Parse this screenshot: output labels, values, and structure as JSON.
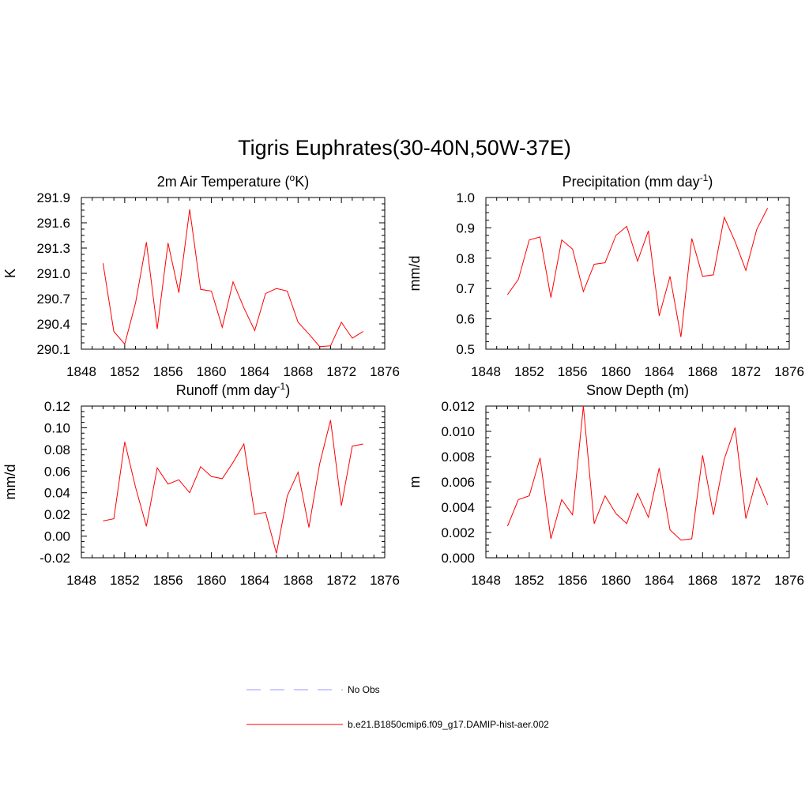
{
  "title": "Tigris Euphrates(30-40N,50W-37E)",
  "legend": [
    {
      "label": "No Obs",
      "color": "#9999ff",
      "dash": true
    },
    {
      "label": "b.e21.B1850cmip6.f09_g17.DAMIP-hist-aer.002",
      "color": "#ff0000",
      "dash": false
    }
  ],
  "chart_data": [
    {
      "type": "line",
      "title": "2m Air Temperature (°K)",
      "title_parts": {
        "pre": "2m Air Temperature (",
        "sup": "o",
        "post": "K)"
      },
      "ylabel": "K",
      "xlim": [
        1848,
        1876
      ],
      "ylim": [
        290.1,
        291.9
      ],
      "xticks": [
        1848,
        1852,
        1856,
        1860,
        1864,
        1868,
        1872,
        1876
      ],
      "yticks": [
        290.1,
        290.4,
        290.7,
        291.0,
        291.3,
        291.6,
        291.9
      ],
      "ytick_labels": [
        "290.1",
        "290.4",
        "290.7",
        "291.0",
        "291.3",
        "291.6",
        "291.9"
      ],
      "x": [
        1850,
        1851,
        1852,
        1853,
        1854,
        1855,
        1856,
        1857,
        1858,
        1859,
        1860,
        1861,
        1862,
        1863,
        1864,
        1865,
        1866,
        1867,
        1868,
        1869,
        1870,
        1871,
        1872,
        1873,
        1874
      ],
      "series": [
        {
          "name": "b.e21.B1850cmip6.f09_g17.DAMIP-hist-aer.002",
          "values": [
            291.12,
            290.31,
            290.16,
            290.65,
            291.37,
            290.34,
            291.36,
            290.77,
            291.76,
            290.81,
            290.79,
            290.36,
            290.9,
            290.59,
            290.32,
            290.76,
            290.82,
            290.79,
            290.42,
            290.28,
            290.13,
            290.14,
            290.42,
            290.23,
            290.31
          ]
        }
      ]
    },
    {
      "type": "line",
      "title": "Precipitation (mm day-1)",
      "title_parts": {
        "pre": "Precipitation (mm day",
        "sup": "-1",
        "post": ")"
      },
      "ylabel": "mm/d",
      "xlim": [
        1848,
        1876
      ],
      "ylim": [
        0.5,
        1.0
      ],
      "xticks": [
        1848,
        1852,
        1856,
        1860,
        1864,
        1868,
        1872,
        1876
      ],
      "yticks": [
        0.5,
        0.6,
        0.7,
        0.8,
        0.9,
        1.0
      ],
      "ytick_labels": [
        "0.5",
        "0.6",
        "0.7",
        "0.8",
        "0.9",
        "1.0"
      ],
      "x": [
        1850,
        1851,
        1852,
        1853,
        1854,
        1855,
        1856,
        1857,
        1858,
        1859,
        1860,
        1861,
        1862,
        1863,
        1864,
        1865,
        1866,
        1867,
        1868,
        1869,
        1870,
        1871,
        1872,
        1873,
        1874
      ],
      "series": [
        {
          "name": "b.e21.B1850cmip6.f09_g17.DAMIP-hist-aer.002",
          "values": [
            0.68,
            0.73,
            0.86,
            0.87,
            0.67,
            0.86,
            0.83,
            0.69,
            0.78,
            0.785,
            0.875,
            0.905,
            0.79,
            0.89,
            0.61,
            0.74,
            0.54,
            0.865,
            0.74,
            0.745,
            0.935,
            0.855,
            0.76,
            0.895,
            0.965
          ]
        }
      ]
    },
    {
      "type": "line",
      "title": "Runoff (mm day-1)",
      "title_parts": {
        "pre": "Runoff (mm day",
        "sup": "-1",
        "post": ")"
      },
      "ylabel": "mm/d",
      "xlim": [
        1848,
        1876
      ],
      "ylim": [
        -0.02,
        0.12
      ],
      "xticks": [
        1848,
        1852,
        1856,
        1860,
        1864,
        1868,
        1872,
        1876
      ],
      "yticks": [
        -0.02,
        0.0,
        0.02,
        0.04,
        0.06,
        0.08,
        0.1,
        0.12
      ],
      "ytick_labels": [
        "-0.02",
        "0.00",
        "0.02",
        "0.04",
        "0.06",
        "0.08",
        "0.10",
        "0.12"
      ],
      "x": [
        1850,
        1851,
        1852,
        1853,
        1854,
        1855,
        1856,
        1857,
        1858,
        1859,
        1860,
        1861,
        1862,
        1863,
        1864,
        1865,
        1866,
        1867,
        1868,
        1869,
        1870,
        1871,
        1872,
        1873,
        1874
      ],
      "series": [
        {
          "name": "b.e21.B1850cmip6.f09_g17.DAMIP-hist-aer.002",
          "values": [
            0.014,
            0.016,
            0.087,
            0.045,
            0.009,
            0.063,
            0.048,
            0.052,
            0.04,
            0.064,
            0.055,
            0.053,
            0.068,
            0.085,
            0.02,
            0.022,
            -0.016,
            0.037,
            0.059,
            0.008,
            0.067,
            0.107,
            0.028,
            0.083,
            0.085
          ]
        }
      ]
    },
    {
      "type": "line",
      "title": "Snow Depth (m)",
      "title_parts": {
        "pre": "Snow Depth (m)",
        "sup": "",
        "post": ""
      },
      "ylabel": "m",
      "xlim": [
        1848,
        1876
      ],
      "ylim": [
        0.0,
        0.012
      ],
      "xticks": [
        1848,
        1852,
        1856,
        1860,
        1864,
        1868,
        1872,
        1876
      ],
      "yticks": [
        0.0,
        0.002,
        0.004,
        0.006,
        0.008,
        0.01,
        0.012
      ],
      "ytick_labels": [
        "0.000",
        "0.002",
        "0.004",
        "0.006",
        "0.008",
        "0.010",
        "0.012"
      ],
      "x": [
        1850,
        1851,
        1852,
        1853,
        1854,
        1855,
        1856,
        1857,
        1858,
        1859,
        1860,
        1861,
        1862,
        1863,
        1864,
        1865,
        1866,
        1867,
        1868,
        1869,
        1870,
        1871,
        1872,
        1873,
        1874
      ],
      "series": [
        {
          "name": "b.e21.B1850cmip6.f09_g17.DAMIP-hist-aer.002",
          "values": [
            0.0025,
            0.0046,
            0.0049,
            0.0079,
            0.0015,
            0.0046,
            0.0034,
            0.012,
            0.0027,
            0.0049,
            0.0035,
            0.0027,
            0.0051,
            0.0032,
            0.0071,
            0.0022,
            0.0014,
            0.0015,
            0.0081,
            0.0034,
            0.0078,
            0.0103,
            0.0031,
            0.0063,
            0.0042
          ]
        }
      ]
    }
  ]
}
